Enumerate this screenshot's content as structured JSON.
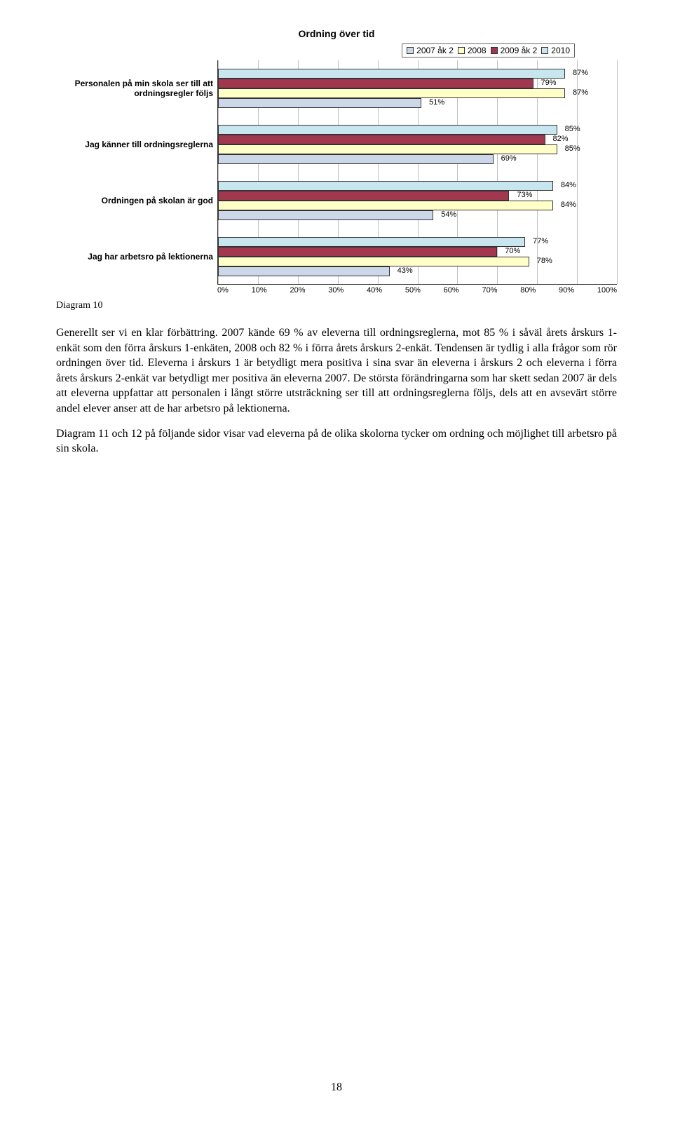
{
  "chart": {
    "title": "Ordning över tid",
    "type": "horizontal-grouped-bar",
    "legend": [
      {
        "label": "2007 åk 2",
        "color": "#ccd8e8"
      },
      {
        "label": "2008",
        "color": "#ffffc8"
      },
      {
        "label": "2009 åk 2",
        "color": "#a23850"
      },
      {
        "label": "2010",
        "color": "#c8e6f0"
      }
    ],
    "categories": [
      {
        "label": "Personalen på min skola ser till att ordningsregler följs",
        "bars": [
          {
            "value": 87,
            "label": "87%",
            "color": "#c8e6f0"
          },
          {
            "value": 79,
            "label": "79%",
            "color": "#a23850"
          },
          {
            "value": 87,
            "label": "87%",
            "color": "#ffffc8"
          },
          {
            "value": 51,
            "label": "51%",
            "color": "#ccd8e8"
          }
        ]
      },
      {
        "label": "Jag känner till ordningsreglerna",
        "bars": [
          {
            "value": 85,
            "label": "85%",
            "color": "#c8e6f0"
          },
          {
            "value": 82,
            "label": "82%",
            "color": "#a23850"
          },
          {
            "value": 85,
            "label": "85%",
            "color": "#ffffc8"
          },
          {
            "value": 69,
            "label": "69%",
            "color": "#ccd8e8"
          }
        ]
      },
      {
        "label": "Ordningen på skolan är god",
        "bars": [
          {
            "value": 84,
            "label": "84%",
            "color": "#c8e6f0"
          },
          {
            "value": 73,
            "label": "73%",
            "color": "#a23850"
          },
          {
            "value": 84,
            "label": "84%",
            "color": "#ffffc8"
          },
          {
            "value": 54,
            "label": "54%",
            "color": "#ccd8e8"
          }
        ]
      },
      {
        "label": "Jag har arbetsro på lektionerna",
        "bars": [
          {
            "value": 77,
            "label": "77%",
            "color": "#c8e6f0"
          },
          {
            "value": 70,
            "label": "70%",
            "color": "#a23850"
          },
          {
            "value": 78,
            "label": "78%",
            "color": "#ffffc8"
          },
          {
            "value": 43,
            "label": "43%",
            "color": "#ccd8e8"
          }
        ]
      }
    ],
    "xticks": [
      "0%",
      "10%",
      "20%",
      "30%",
      "40%",
      "50%",
      "60%",
      "70%",
      "80%",
      "90%",
      "100%"
    ],
    "xmin": 0,
    "xmax": 100
  },
  "diagram_label": "Diagram 10",
  "paragraphs": [
    "Generellt ser vi en klar förbättring. 2007 kände 69 % av eleverna till ordningsreglerna, mot 85 % i såväl årets årskurs 1-enkät som den förra årskurs 1-enkäten, 2008 och 82 % i förra årets årskurs 2-enkät. Tendensen är tydlig i alla frågor som rör ordningen över tid. Eleverna i årskurs 1 är betydligt mera positiva i sina svar än eleverna i årskurs 2 och eleverna i förra årets årskurs 2-enkät var betydligt mer positiva än eleverna 2007. De största förändringarna som har skett sedan 2007 är dels att eleverna uppfattar att personalen i långt större utsträckning ser till att ordningsreglerna följs, dels att en avsevärt större andel elever anser att de har arbetsro på lektionerna.",
    "Diagram 11 och 12 på följande sidor visar vad eleverna på de olika skolorna tycker om ordning och möjlighet till arbetsro på sin skola."
  ],
  "page_number": "18"
}
